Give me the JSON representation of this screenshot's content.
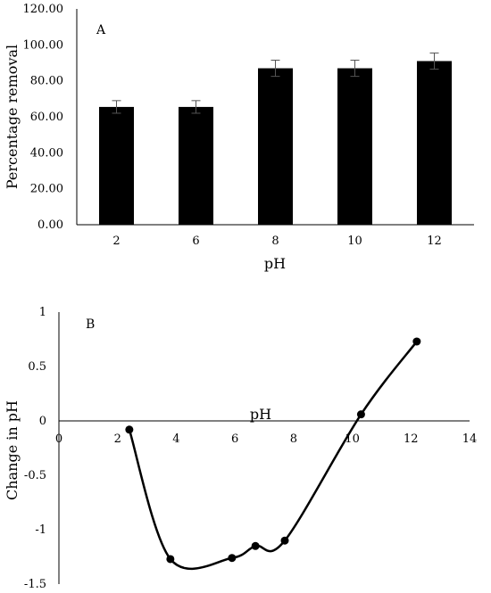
{
  "chart_data": [
    {
      "type": "bar",
      "panel_label": "A",
      "categories": [
        "2",
        "6",
        "8",
        "10",
        "12"
      ],
      "values": [
        65.5,
        65.5,
        87.0,
        87.0,
        91.0
      ],
      "error": [
        3.5,
        3.5,
        4.5,
        4.5,
        4.5
      ],
      "xlabel": "pH",
      "ylabel": "Percentage removal",
      "ylim": [
        0,
        120
      ],
      "yticks": [
        "0.00",
        "20.00",
        "40.00",
        "60.00",
        "80.00",
        "100.00",
        "120.00"
      ],
      "grid": false,
      "bar_color": "#000000"
    },
    {
      "type": "scatter",
      "panel_label": "B",
      "x": [
        2.4,
        3.8,
        5.9,
        6.7,
        7.7,
        10.3,
        12.2
      ],
      "y": [
        -0.08,
        -1.27,
        -1.26,
        -1.15,
        -1.1,
        0.06,
        0.73
      ],
      "xlabel": "pH",
      "ylabel": "Change in pH",
      "xlim": [
        0,
        14
      ],
      "ylim": [
        -1.5,
        1
      ],
      "xticks": [
        "0",
        "2",
        "4",
        "6",
        "8",
        "10",
        "12",
        "14"
      ],
      "yticks": [
        "-1.5",
        "-1",
        "-0.5",
        "0",
        "0.5",
        "1"
      ],
      "line": "smooth",
      "grid": false,
      "marker_color": "#000000"
    }
  ]
}
